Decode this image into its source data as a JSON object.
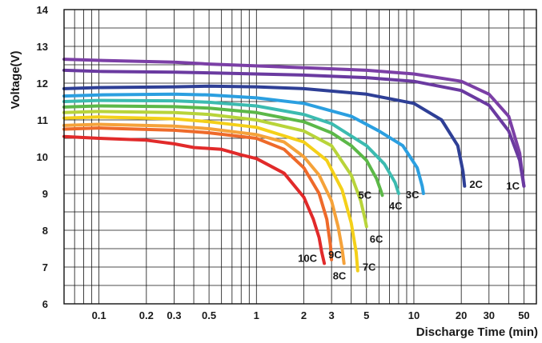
{
  "chart_data": {
    "type": "line",
    "title": "",
    "xlabel": "Discharge Time (min)",
    "ylabel": "Voltage(V)",
    "x_scale": "log",
    "xlim": [
      0.06,
      60
    ],
    "ylim": [
      6,
      14
    ],
    "grid": true,
    "y_ticks": [
      "6",
      "7",
      "8",
      "9",
      "10",
      "11",
      "12",
      "13",
      "14"
    ],
    "x_ticks": [
      "0.1",
      "0.2",
      "0.3",
      "0.5",
      "1",
      "2",
      "3",
      "5",
      "10",
      "20",
      "30",
      "50"
    ],
    "series": [
      {
        "name": "10C",
        "color": "#e12a2a",
        "x": [
          0.06,
          0.1,
          0.2,
          0.3,
          0.4,
          0.6,
          0.8,
          1.0,
          1.5,
          2.0,
          2.3,
          2.5,
          2.6,
          2.7
        ],
        "y": [
          10.55,
          10.5,
          10.45,
          10.35,
          10.25,
          10.2,
          10.05,
          9.95,
          9.55,
          8.9,
          8.3,
          7.8,
          7.4,
          7.1
        ]
      },
      {
        "name": "9C",
        "color": "#ee6a2a",
        "x": [
          0.06,
          0.1,
          0.3,
          0.5,
          1.0,
          1.5,
          2.0,
          2.5,
          2.8,
          2.95,
          3.0
        ],
        "y": [
          10.75,
          10.78,
          10.72,
          10.65,
          10.5,
          10.2,
          9.7,
          9.0,
          8.3,
          7.6,
          7.2
        ]
      },
      {
        "name": "8C",
        "color": "#f5a23a",
        "x": [
          0.06,
          0.1,
          0.3,
          0.5,
          1.0,
          1.5,
          2.0,
          2.5,
          3.0,
          3.3,
          3.5,
          3.6
        ],
        "y": [
          10.85,
          10.88,
          10.83,
          10.76,
          10.6,
          10.4,
          10.0,
          9.5,
          8.8,
          8.1,
          7.5,
          7.1
        ]
      },
      {
        "name": "7C",
        "color": "#f4d019",
        "x": [
          0.06,
          0.1,
          0.3,
          0.5,
          1.0,
          2.0,
          2.8,
          3.5,
          4.0,
          4.3,
          4.4
        ],
        "y": [
          11.05,
          11.08,
          11.03,
          10.95,
          10.8,
          10.4,
          9.9,
          9.1,
          8.2,
          7.4,
          6.9
        ]
      },
      {
        "name": "6C",
        "color": "#b8d43a",
        "x": [
          0.06,
          0.1,
          0.3,
          0.5,
          1.0,
          2.0,
          3.0,
          4.0,
          4.6,
          4.9,
          5.0
        ],
        "y": [
          11.2,
          11.23,
          11.2,
          11.15,
          11.0,
          10.7,
          10.3,
          9.5,
          8.8,
          8.3,
          8.1
        ]
      },
      {
        "name": "5C",
        "color": "#5cb848",
        "x": [
          0.06,
          0.1,
          0.3,
          0.5,
          1.0,
          2.0,
          3.0,
          4.0,
          5.0,
          5.8,
          6.2,
          6.3
        ],
        "y": [
          11.35,
          11.38,
          11.36,
          11.32,
          11.2,
          10.95,
          10.65,
          10.3,
          9.9,
          9.4,
          9.05,
          8.95
        ]
      },
      {
        "name": "4C",
        "color": "#3cbbb0",
        "x": [
          0.06,
          0.1,
          0.3,
          0.5,
          1.0,
          2.0,
          3.0,
          5.0,
          6.5,
          7.6,
          8.0
        ],
        "y": [
          11.5,
          11.53,
          11.52,
          11.48,
          11.38,
          11.15,
          10.9,
          10.3,
          9.8,
          9.3,
          9.0
        ]
      },
      {
        "name": "3C",
        "color": "#2b9fe0",
        "x": [
          0.06,
          0.1,
          0.3,
          0.5,
          1.0,
          2.0,
          4.0,
          6.0,
          8.5,
          10.5,
          11.3,
          11.5
        ],
        "y": [
          11.65,
          11.68,
          11.7,
          11.68,
          11.6,
          11.45,
          11.1,
          10.7,
          10.3,
          9.7,
          9.2,
          9.0
        ]
      },
      {
        "name": "2C",
        "color": "#2e3f96",
        "x": [
          0.06,
          0.1,
          0.3,
          0.5,
          1.0,
          2.0,
          5.0,
          10.0,
          15.0,
          19.0,
          20.5,
          21.0
        ],
        "y": [
          11.85,
          11.88,
          11.9,
          11.92,
          11.9,
          11.85,
          11.7,
          11.45,
          11.0,
          10.3,
          9.6,
          9.2
        ]
      },
      {
        "name": "1C",
        "color": "#6a3aa0",
        "x": [
          0.06,
          0.1,
          0.3,
          0.5,
          1.0,
          2.0,
          5.0,
          10.0,
          20.0,
          30.0,
          40.0,
          47.0,
          50.0
        ],
        "y": [
          12.35,
          12.32,
          12.3,
          12.28,
          12.25,
          12.22,
          12.15,
          12.05,
          11.8,
          11.4,
          10.7,
          9.9,
          9.2
        ]
      },
      {
        "name": "",
        "color": "#7b3fa6",
        "x": [
          0.06,
          0.1,
          0.3,
          0.5,
          1.0,
          2.0,
          5.0,
          10.0,
          20.0,
          30.0,
          40.0,
          47.0,
          50.0
        ],
        "y": [
          12.65,
          12.62,
          12.57,
          12.52,
          12.47,
          12.42,
          12.35,
          12.25,
          12.05,
          11.7,
          11.1,
          10.1,
          9.2
        ]
      }
    ]
  }
}
